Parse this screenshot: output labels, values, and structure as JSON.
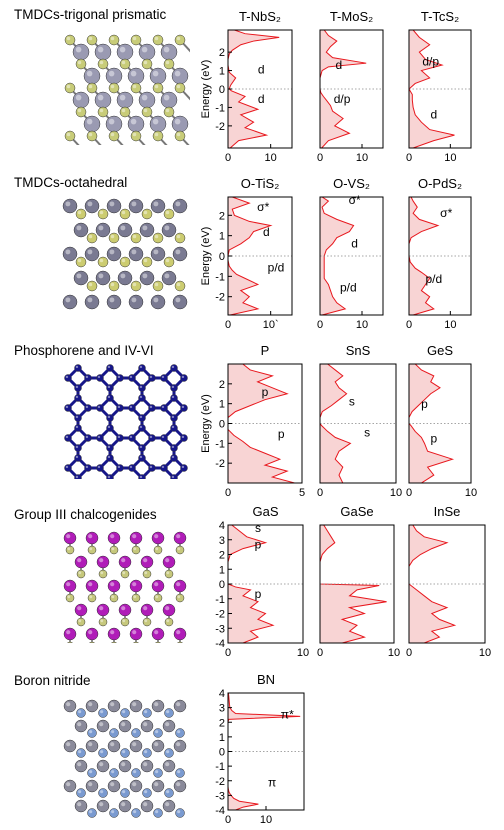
{
  "sections": [
    {
      "title": "TMDCs-trigonal prismatic"
    },
    {
      "title": "TMDCs-octahedral"
    },
    {
      "title": "Phosphorene and IV-VI"
    },
    {
      "title": "Group III chalcogenides"
    },
    {
      "title": "Boron nitride"
    }
  ],
  "colors": {
    "dos_fill": "#f8d4d4",
    "dos_line": "#e8181e",
    "frame": "#000000",
    "structure_atoms": [
      {
        "metal": "#9a9ab2",
        "chalcogen": "#c8cc78"
      },
      {
        "metal": "#7a7a92",
        "chalcogen": "#cccc70"
      },
      {
        "metal": "#16168a",
        "chalcogen": "#16168a"
      },
      {
        "metal": "#b01cb8",
        "chalcogen": "#c6c87c"
      },
      {
        "metal": "#8a8a9a",
        "chalcogen": "#7a9ad0"
      }
    ]
  },
  "chart_data": [
    {
      "type": "area",
      "title": "T-NbS₂",
      "ylabel": "Energy (eV)",
      "ylim": [
        -3.2,
        3.2
      ],
      "xlim": [
        0,
        15
      ],
      "xticks": [
        "0",
        "10"
      ],
      "yticks": [
        "2",
        "1",
        "0",
        "-1",
        "-2"
      ],
      "annotations": [
        "d",
        "d"
      ],
      "series": [
        {
          "y": [
            -3.2,
            -2.8,
            -2.5,
            -2.1,
            -1.8,
            -1.4,
            -1.1,
            -0.7,
            -0.4,
            -0.1,
            0.0,
            0.2,
            0.6,
            0.9,
            1.3,
            1.6,
            1.9,
            2.1,
            2.4,
            2.6,
            2.8,
            3.0,
            3.2
          ],
          "x": [
            0.5,
            2.5,
            9.0,
            4.0,
            6.0,
            3.0,
            7.0,
            2.5,
            4.0,
            0.8,
            0.3,
            0.6,
            1.8,
            0.3,
            0.0,
            0.0,
            0.3,
            1.0,
            3.0,
            6.0,
            12.0,
            4.0,
            1.5
          ]
        }
      ]
    },
    {
      "type": "area",
      "title": "T-MoS₂",
      "ylim": [
        -3.2,
        3.2
      ],
      "xlim": [
        0,
        15
      ],
      "xticks": [
        "0",
        "10"
      ],
      "annotations": [
        "d",
        "d/p"
      ],
      "series": [
        {
          "y": [
            -3.2,
            -2.8,
            -2.4,
            -2.0,
            -1.6,
            -1.2,
            -0.9,
            -0.6,
            -0.4,
            -0.2,
            0.0,
            0.2,
            0.6,
            1.0,
            1.2,
            1.4,
            1.7,
            2.0,
            2.3,
            2.6,
            2.9,
            3.2
          ],
          "x": [
            0.4,
            2.0,
            7.0,
            3.5,
            5.5,
            3.0,
            2.5,
            1.5,
            0.8,
            0.2,
            0.0,
            0.0,
            0.0,
            0.5,
            2.0,
            11.0,
            3.0,
            1.5,
            2.5,
            4.0,
            2.0,
            1.0
          ]
        }
      ]
    },
    {
      "type": "area",
      "title": "T-TcS₂",
      "ylim": [
        -3.2,
        3.2
      ],
      "xlim": [
        0,
        15
      ],
      "xticks": [
        "0",
        "10"
      ],
      "annotations": [
        "d/p",
        "d"
      ],
      "series": [
        {
          "y": [
            -3.2,
            -2.8,
            -2.5,
            -2.2,
            -1.8,
            -1.4,
            -1.0,
            -0.6,
            -0.3,
            0.0,
            0.3,
            0.6,
            1.0,
            1.3,
            1.6,
            2.0,
            2.4,
            2.8,
            3.2
          ],
          "x": [
            1.0,
            6.0,
            11.0,
            5.0,
            3.0,
            1.5,
            1.0,
            0.8,
            0.8,
            0.0,
            1.5,
            5.0,
            3.0,
            8.0,
            4.0,
            2.5,
            5.0,
            2.5,
            1.0
          ]
        }
      ]
    },
    {
      "type": "area",
      "title": "O-TiS₂",
      "ylabel": "Energy (eV)",
      "ylim": [
        -2.9,
        2.9
      ],
      "xlim": [
        0,
        15
      ],
      "xticks": [
        "0",
        "10`"
      ],
      "yticks": [
        "2",
        "1",
        "0",
        "-1",
        "-2"
      ],
      "annotations": [
        "σ*",
        "d",
        "p/d"
      ],
      "series": [
        {
          "y": [
            -2.9,
            -2.6,
            -2.3,
            -2.0,
            -1.7,
            -1.4,
            -1.1,
            -0.9,
            -0.7,
            -0.5,
            -0.2,
            0.0,
            0.3,
            0.6,
            0.9,
            1.2,
            1.5,
            1.7,
            2.0,
            2.3,
            2.6,
            2.9
          ],
          "x": [
            0.5,
            7.0,
            3.5,
            5.0,
            3.0,
            7.0,
            4.0,
            2.0,
            1.0,
            0.3,
            0.0,
            0.0,
            0.3,
            3.0,
            5.0,
            6.0,
            10.0,
            5.0,
            1.5,
            1.0,
            5.0,
            1.0
          ]
        }
      ]
    },
    {
      "type": "area",
      "title": "O-VS₂",
      "ylim": [
        -2.9,
        2.9
      ],
      "xlim": [
        0,
        15
      ],
      "xticks": [
        "0",
        "10"
      ],
      "annotations": [
        "σ*",
        "d",
        "p/d"
      ],
      "series": [
        {
          "y": [
            -2.9,
            -2.6,
            -2.3,
            -2.0,
            -1.7,
            -1.4,
            -1.1,
            -0.8,
            -0.5,
            -0.2,
            0.0,
            0.3,
            0.6,
            0.9,
            1.2,
            1.5,
            1.8,
            2.1,
            2.4,
            2.7,
            2.9
          ],
          "x": [
            0.5,
            6.0,
            4.0,
            3.0,
            2.5,
            2.0,
            1.0,
            1.0,
            1.0,
            1.0,
            1.0,
            1.5,
            3.0,
            4.0,
            7.0,
            8.0,
            4.0,
            1.0,
            0.5,
            2.0,
            0.5
          ]
        }
      ]
    },
    {
      "type": "area",
      "title": "O-PdS₂",
      "ylim": [
        -2.9,
        2.9
      ],
      "xlim": [
        0,
        15
      ],
      "xticks": [
        "0",
        "10"
      ],
      "annotations": [
        "σ*",
        "p/d"
      ],
      "series": [
        {
          "y": [
            -2.9,
            -2.6,
            -2.3,
            -2.0,
            -1.7,
            -1.4,
            -1.1,
            -0.8,
            -0.6,
            -0.3,
            0.0,
            0.3,
            0.6,
            0.9,
            1.2,
            1.5,
            1.8,
            2.1,
            2.4,
            2.7,
            2.9
          ],
          "x": [
            1.0,
            6.0,
            4.0,
            5.0,
            3.0,
            4.0,
            5.0,
            3.0,
            1.5,
            0.3,
            0.0,
            0.0,
            0.0,
            0.5,
            3.0,
            7.0,
            2.5,
            1.0,
            2.0,
            1.0,
            0.5
          ]
        }
      ]
    },
    {
      "type": "area",
      "title": "P",
      "ylabel": "Energy (eV)",
      "ylim": [
        -3.0,
        3.0
      ],
      "xlim": [
        0,
        5
      ],
      "xticks": [
        "0",
        "5"
      ],
      "yticks": [
        "2",
        "1",
        "0",
        "-1",
        "-2"
      ],
      "annotations": [
        "p",
        "p"
      ],
      "series": [
        {
          "y": [
            -3.0,
            -2.7,
            -2.4,
            -2.1,
            -1.8,
            -1.5,
            -1.2,
            -0.9,
            -0.6,
            -0.3,
            0.0,
            0.3,
            0.6,
            0.9,
            1.2,
            1.5,
            1.8,
            2.1,
            2.4,
            2.7,
            3.0
          ],
          "x": [
            4.5,
            3.0,
            4.0,
            2.5,
            3.5,
            2.5,
            1.5,
            1.0,
            0.4,
            0.0,
            0.0,
            0.0,
            0.5,
            1.5,
            2.5,
            4.0,
            3.0,
            2.0,
            3.0,
            1.5,
            1.0
          ]
        }
      ]
    },
    {
      "type": "area",
      "title": "SnS",
      "ylim": [
        -3.0,
        3.0
      ],
      "xlim": [
        0,
        10
      ],
      "xticks": [
        "0",
        "10"
      ],
      "annotations": [
        "s",
        "s"
      ],
      "series": [
        {
          "y": [
            -3.0,
            -2.6,
            -2.2,
            -1.8,
            -1.4,
            -1.0,
            -0.7,
            -0.4,
            -0.1,
            0.0,
            0.3,
            0.6,
            0.9,
            1.2,
            1.5,
            1.8,
            2.1,
            2.4,
            2.7,
            3.0
          ],
          "x": [
            3.0,
            2.5,
            3.0,
            2.0,
            2.5,
            4.0,
            2.0,
            1.0,
            0.2,
            0.0,
            0.0,
            0.3,
            1.5,
            2.5,
            3.5,
            2.5,
            2.0,
            3.0,
            2.0,
            1.0
          ]
        }
      ]
    },
    {
      "type": "area",
      "title": "GeS",
      "ylim": [
        -3.0,
        3.0
      ],
      "xlim": [
        0,
        10
      ],
      "xticks": [
        "0",
        "10"
      ],
      "annotations": [
        "p",
        "p"
      ],
      "series": [
        {
          "y": [
            -3.0,
            -2.6,
            -2.2,
            -1.8,
            -1.4,
            -1.0,
            -0.7,
            -0.4,
            -0.1,
            0.0,
            0.3,
            0.6,
            0.9,
            1.2,
            1.5,
            1.8,
            2.1,
            2.4,
            2.7,
            3.0
          ],
          "x": [
            2.0,
            4.0,
            3.0,
            7.0,
            3.0,
            2.5,
            2.0,
            1.0,
            0.3,
            0.0,
            0.0,
            0.5,
            1.5,
            2.5,
            3.5,
            5.0,
            3.5,
            4.0,
            2.0,
            1.0
          ]
        }
      ]
    },
    {
      "type": "area",
      "title": "GaS",
      "ylim": [
        -4,
        4
      ],
      "xlim": [
        0,
        10
      ],
      "xticks": [
        "0",
        "10"
      ],
      "yticks": [
        "4",
        "3",
        "2",
        "1",
        "0",
        "-1",
        "-2",
        "-3",
        "-4"
      ],
      "annotations": [
        "s",
        "p",
        "p"
      ],
      "series": [
        {
          "y": [
            -4.0,
            -3.6,
            -3.2,
            -2.8,
            -2.4,
            -2.0,
            -1.6,
            -1.2,
            -0.8,
            -0.4,
            -0.2,
            0.0,
            0.5,
            1.0,
            1.5,
            2.0,
            2.4,
            2.8,
            3.2,
            3.6,
            4.0
          ],
          "x": [
            2.0,
            4.0,
            3.0,
            6.0,
            4.0,
            5.0,
            3.0,
            4.0,
            2.0,
            3.0,
            1.0,
            0.0,
            0.0,
            0.0,
            0.0,
            0.3,
            2.0,
            5.0,
            2.5,
            1.5,
            0.5
          ]
        }
      ]
    },
    {
      "type": "area",
      "title": "GaSe",
      "ylim": [
        -4,
        4
      ],
      "xlim": [
        0,
        10
      ],
      "xticks": [
        "0",
        "10"
      ],
      "series": [
        {
          "y": [
            -4.0,
            -3.6,
            -3.2,
            -2.8,
            -2.4,
            -2.0,
            -1.6,
            -1.2,
            -0.8,
            -0.4,
            -0.1,
            0.0,
            0.5,
            1.0,
            1.5,
            2.0,
            2.4,
            2.8,
            3.2,
            3.6,
            4.0
          ],
          "x": [
            3.0,
            6.0,
            4.0,
            5.0,
            3.0,
            6.0,
            4.0,
            9.0,
            4.0,
            5.0,
            8.0,
            0.0,
            0.0,
            0.0,
            0.0,
            0.3,
            1.0,
            2.0,
            1.5,
            1.0,
            0.5
          ]
        }
      ]
    },
    {
      "type": "area",
      "title": "InSe",
      "ylim": [
        -4,
        4
      ],
      "xlim": [
        0,
        10
      ],
      "xticks": [
        "0",
        "10"
      ],
      "series": [
        {
          "y": [
            -4.0,
            -3.6,
            -3.2,
            -2.8,
            -2.4,
            -2.0,
            -1.6,
            -1.2,
            -0.8,
            -0.4,
            0.0,
            0.4,
            0.8,
            1.2,
            1.6,
            2.0,
            2.4,
            2.8,
            3.2,
            3.6,
            4.0
          ],
          "x": [
            2.0,
            4.0,
            3.0,
            6.0,
            4.0,
            3.0,
            5.0,
            3.0,
            2.0,
            1.0,
            0.0,
            0.0,
            0.0,
            0.0,
            0.5,
            1.5,
            3.0,
            5.0,
            2.0,
            1.0,
            0.5
          ]
        }
      ]
    },
    {
      "type": "area",
      "title": "BN",
      "ylim": [
        -4,
        4
      ],
      "xlim": [
        0,
        20
      ],
      "xticks": [
        "0",
        "10"
      ],
      "yticks": [
        "4",
        "3",
        "2",
        "1",
        "0",
        "-1",
        "-2",
        "-3",
        "-4"
      ],
      "annotations": [
        "π*",
        "π"
      ],
      "series": [
        {
          "y": [
            -4.0,
            -3.8,
            -3.6,
            -3.4,
            -3.2,
            -3.0,
            -2.8,
            -2.6,
            -2.4,
            -2.0,
            -1.0,
            0.0,
            1.0,
            2.0,
            2.2,
            2.4,
            2.6,
            2.8,
            3.0,
            3.2,
            3.5,
            3.8,
            4.0
          ],
          "x": [
            2.0,
            4.0,
            8.0,
            3.0,
            1.5,
            0.8,
            0.3,
            0.1,
            0.0,
            0.0,
            0.0,
            0.0,
            0.0,
            0.0,
            0.2,
            19.0,
            2.0,
            1.0,
            0.5,
            0.4,
            0.3,
            0.2,
            0.1
          ]
        }
      ]
    }
  ]
}
